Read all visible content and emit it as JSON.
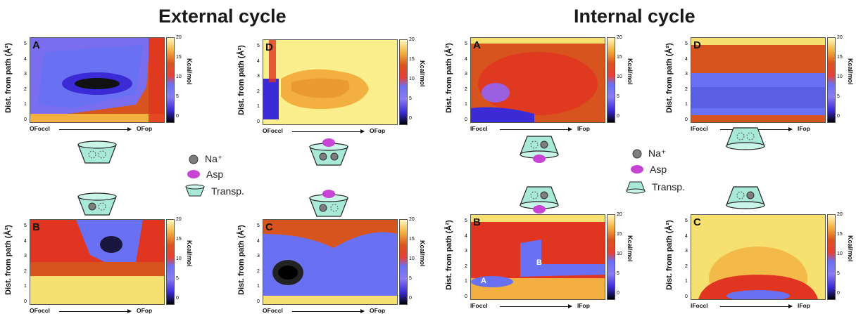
{
  "titles": {
    "external": "External cycle",
    "internal": "Internal cycle"
  },
  "axes": {
    "ylabel": "Dist. from path (Å²)",
    "yticks": [
      "5",
      "4",
      "3",
      "2",
      "1",
      "0"
    ],
    "cbar_ticks": [
      "20",
      "15",
      "10",
      "5",
      "0"
    ],
    "cbar_unit": "Kcal/mol"
  },
  "panels": [
    {
      "id": "ext-A",
      "label": "A",
      "xlabel_left": "OFoccl",
      "xlabel_right": "OFop"
    },
    {
      "id": "ext-D",
      "label": "D",
      "xlabel_left": "OFoccl",
      "xlabel_right": "OFop"
    },
    {
      "id": "ext-B",
      "label": "B",
      "xlabel_left": "OFoccl",
      "xlabel_right": "OFop"
    },
    {
      "id": "ext-C",
      "label": "C",
      "xlabel_left": "OFoccl",
      "xlabel_right": "OFop"
    },
    {
      "id": "int-A",
      "label": "A",
      "xlabel_left": "IFoccl",
      "xlabel_right": "IFop"
    },
    {
      "id": "int-D",
      "label": "D",
      "xlabel_left": "IFoccl",
      "xlabel_right": "IFop"
    },
    {
      "id": "int-B",
      "label": "B",
      "xlabel_left": "IFoccl",
      "xlabel_right": "IFop",
      "sub_labels": [
        "A",
        "B"
      ]
    },
    {
      "id": "int-C",
      "label": "C",
      "xlabel_left": "IFoccl",
      "xlabel_right": "IFop"
    }
  ],
  "legend": {
    "na": "Na⁺",
    "asp": "Asp",
    "transp": "Transp."
  },
  "colors": {
    "transporter": "#a8ead7",
    "sodium": "#7c7f7c",
    "aspartate": "#c744d4",
    "map_low": "#000000",
    "map_mid": "#6a70f2",
    "map_high_red": "#e03520",
    "map_top": "#fff8c0"
  }
}
